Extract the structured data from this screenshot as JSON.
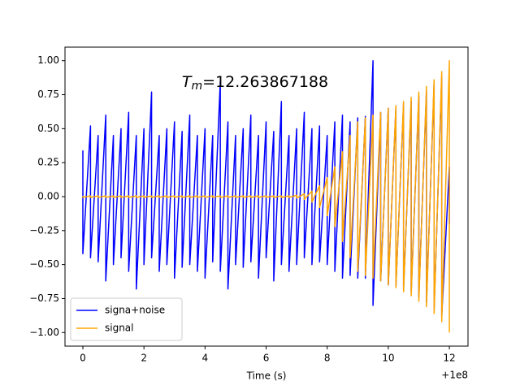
{
  "chart_data": {
    "type": "line",
    "annotation": {
      "symbol": "T",
      "subscript": "m",
      "text": "=12.263867188"
    },
    "xlabel": "Time (s)",
    "x_offset": "+1e8",
    "xlim": [
      -0.585,
      12.61
    ],
    "ylim": [
      -1.1,
      1.1
    ],
    "xticks": [
      0,
      2,
      4,
      6,
      8,
      10,
      12
    ],
    "yticks": [
      {
        "value": -1,
        "label": "−1.00"
      },
      {
        "value": -0.75,
        "label": "−0.75"
      },
      {
        "value": -0.5,
        "label": "−0.50"
      },
      {
        "value": -0.25,
        "label": "−0.25"
      },
      {
        "value": 0,
        "label": "0.00"
      },
      {
        "value": 0.25,
        "label": "0.25"
      },
      {
        "value": 0.5,
        "label": "0.50"
      },
      {
        "value": 0.75,
        "label": "0.75"
      },
      {
        "value": 1,
        "label": "1.00"
      }
    ],
    "legend": "lower left",
    "x": [
      0,
      0,
      0.25,
      0.25,
      0.5,
      0.5,
      0.75,
      0.75,
      1,
      1,
      1.25,
      1.25,
      1.5,
      1.5,
      1.75,
      1.75,
      2,
      2,
      2.25,
      2.25,
      2.5,
      2.5,
      2.75,
      2.75,
      3,
      3,
      3.25,
      3.25,
      3.5,
      3.5,
      3.75,
      3.75,
      4,
      4,
      4.25,
      4.25,
      4.5,
      4.5,
      4.75,
      4.75,
      5,
      5,
      5.25,
      5.25,
      5.5,
      5.5,
      5.75,
      5.75,
      6,
      6,
      6.25,
      6.25,
      6.5,
      6.5,
      6.75,
      6.75,
      7,
      7,
      7.25,
      7.25,
      7.5,
      7.5,
      7.75,
      7.75,
      8,
      8,
      8.25,
      8.25,
      8.5,
      8.5,
      8.75,
      8.75,
      9,
      9,
      9.25,
      9.25,
      9.5,
      9.5,
      9.75,
      9.75,
      10,
      10,
      10.25,
      10.25,
      10.5,
      10.5,
      10.75,
      10.75,
      11,
      11,
      11.25,
      11.25,
      11.5,
      11.5,
      11.75,
      11.75,
      12,
      12
    ],
    "series": [
      {
        "name": "signa+noise",
        "color": "#0000ff",
        "values": [
          0.34,
          -0.42,
          0.52,
          -0.45,
          0.45,
          -0.48,
          0.6,
          -0.62,
          0.45,
          -0.5,
          0.5,
          -0.45,
          0.62,
          -0.55,
          0.45,
          -0.68,
          0.5,
          -0.5,
          0.77,
          -0.45,
          0.45,
          -0.55,
          0.5,
          -0.5,
          0.55,
          -0.6,
          0.48,
          -0.52,
          0.6,
          -0.5,
          0.45,
          -0.55,
          0.5,
          -0.6,
          0.45,
          -0.48,
          0.85,
          -0.55,
          0.55,
          -0.68,
          0.45,
          -0.5,
          0.5,
          -0.52,
          0.6,
          -0.48,
          0.45,
          -0.6,
          0.55,
          -0.45,
          0.48,
          -0.62,
          0.7,
          -0.5,
          0.45,
          -0.55,
          0.5,
          -0.5,
          0.62,
          -0.45,
          0.5,
          -0.5,
          0.52,
          -0.48,
          0.45,
          -0.5,
          0.55,
          -0.55,
          0.6,
          -0.6,
          0.55,
          -0.58,
          0.58,
          -0.6,
          0.59,
          -0.6,
          1.0,
          -0.8,
          0.62,
          -0.62,
          0.65,
          -0.65,
          0.66,
          -0.66,
          0.68,
          -0.68,
          0.7,
          -0.7,
          0.74,
          -0.74,
          0.78,
          -0.78,
          0.83,
          -0.83,
          0.88,
          -0.88,
          0.22,
          -0.2
        ]
      },
      {
        "name": "signal",
        "color": "#ffa500",
        "values": [
          0.005,
          -0.005,
          0.005,
          -0.005,
          0.005,
          -0.005,
          0.005,
          -0.005,
          0.005,
          -0.005,
          0.005,
          -0.005,
          0.005,
          -0.005,
          0.005,
          -0.005,
          0.005,
          -0.005,
          0.005,
          -0.005,
          0.005,
          -0.005,
          0.005,
          -0.005,
          0.005,
          -0.005,
          0.005,
          -0.005,
          0.005,
          -0.005,
          0.005,
          -0.005,
          0.005,
          -0.005,
          0.005,
          -0.005,
          0.005,
          -0.005,
          0.005,
          -0.005,
          0.005,
          -0.005,
          0.005,
          -0.005,
          0.005,
          -0.005,
          0.005,
          -0.005,
          0.005,
          -0.005,
          0.005,
          -0.005,
          0.005,
          -0.005,
          0.005,
          -0.005,
          0.01,
          -0.01,
          0.02,
          -0.02,
          0.04,
          -0.04,
          0.08,
          -0.08,
          0.14,
          -0.14,
          0.22,
          -0.22,
          0.33,
          -0.33,
          0.45,
          -0.45,
          0.55,
          -0.55,
          0.58,
          -0.58,
          0.6,
          -0.6,
          0.62,
          -0.62,
          0.65,
          -0.65,
          0.67,
          -0.67,
          0.7,
          -0.7,
          0.73,
          -0.73,
          0.77,
          -0.77,
          0.81,
          -0.81,
          0.86,
          -0.86,
          0.92,
          -0.92,
          1.0,
          -1.0
        ]
      }
    ]
  }
}
